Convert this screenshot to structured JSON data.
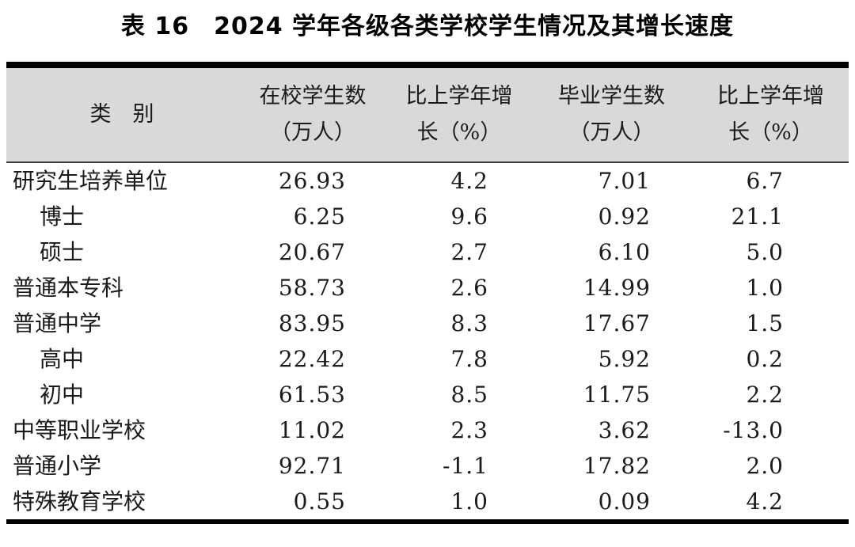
{
  "title": "表 16　2024 学年各级各类学校学生情况及其增长速度",
  "colors": {
    "header_background": "#d9d9d9",
    "rule": "#000000",
    "text": "#1a1a1a"
  },
  "table": {
    "category_header": "类　别",
    "columns": [
      {
        "line1": "在校学生数",
        "line2": "（万人）"
      },
      {
        "line1": "比上学年增",
        "line2": "长（%）"
      },
      {
        "line1": "毕业学生数",
        "line2": "（万人）"
      },
      {
        "line1": "比上学年增",
        "line2": "长（%）"
      }
    ],
    "rows": [
      {
        "label": "研究生培养单位",
        "indent": false,
        "enrolled": "26.93",
        "enrolled_growth": "4.2",
        "graduated": "7.01",
        "graduated_growth": "6.7"
      },
      {
        "label": "博士",
        "indent": true,
        "enrolled": "6.25",
        "enrolled_growth": "9.6",
        "graduated": "0.92",
        "graduated_growth": "21.1"
      },
      {
        "label": "硕士",
        "indent": true,
        "enrolled": "20.67",
        "enrolled_growth": "2.7",
        "graduated": "6.10",
        "graduated_growth": "5.0"
      },
      {
        "label": "普通本专科",
        "indent": false,
        "enrolled": "58.73",
        "enrolled_growth": "2.6",
        "graduated": "14.99",
        "graduated_growth": "1.0"
      },
      {
        "label": "普通中学",
        "indent": false,
        "enrolled": "83.95",
        "enrolled_growth": "8.3",
        "graduated": "17.67",
        "graduated_growth": "1.5"
      },
      {
        "label": "高中",
        "indent": true,
        "enrolled": "22.42",
        "enrolled_growth": "7.8",
        "graduated": "5.92",
        "graduated_growth": "0.2"
      },
      {
        "label": "初中",
        "indent": true,
        "enrolled": "61.53",
        "enrolled_growth": "8.5",
        "graduated": "11.75",
        "graduated_growth": "2.2"
      },
      {
        "label": "中等职业学校",
        "indent": false,
        "enrolled": "11.02",
        "enrolled_growth": "2.3",
        "graduated": "3.62",
        "graduated_growth": "-13.0"
      },
      {
        "label": "普通小学",
        "indent": false,
        "enrolled": "92.71",
        "enrolled_growth": "-1.1",
        "graduated": "17.82",
        "graduated_growth": "2.0"
      },
      {
        "label": "特殊教育学校",
        "indent": false,
        "enrolled": "0.55",
        "enrolled_growth": "1.0",
        "graduated": "0.09",
        "graduated_growth": "4.2"
      }
    ]
  }
}
